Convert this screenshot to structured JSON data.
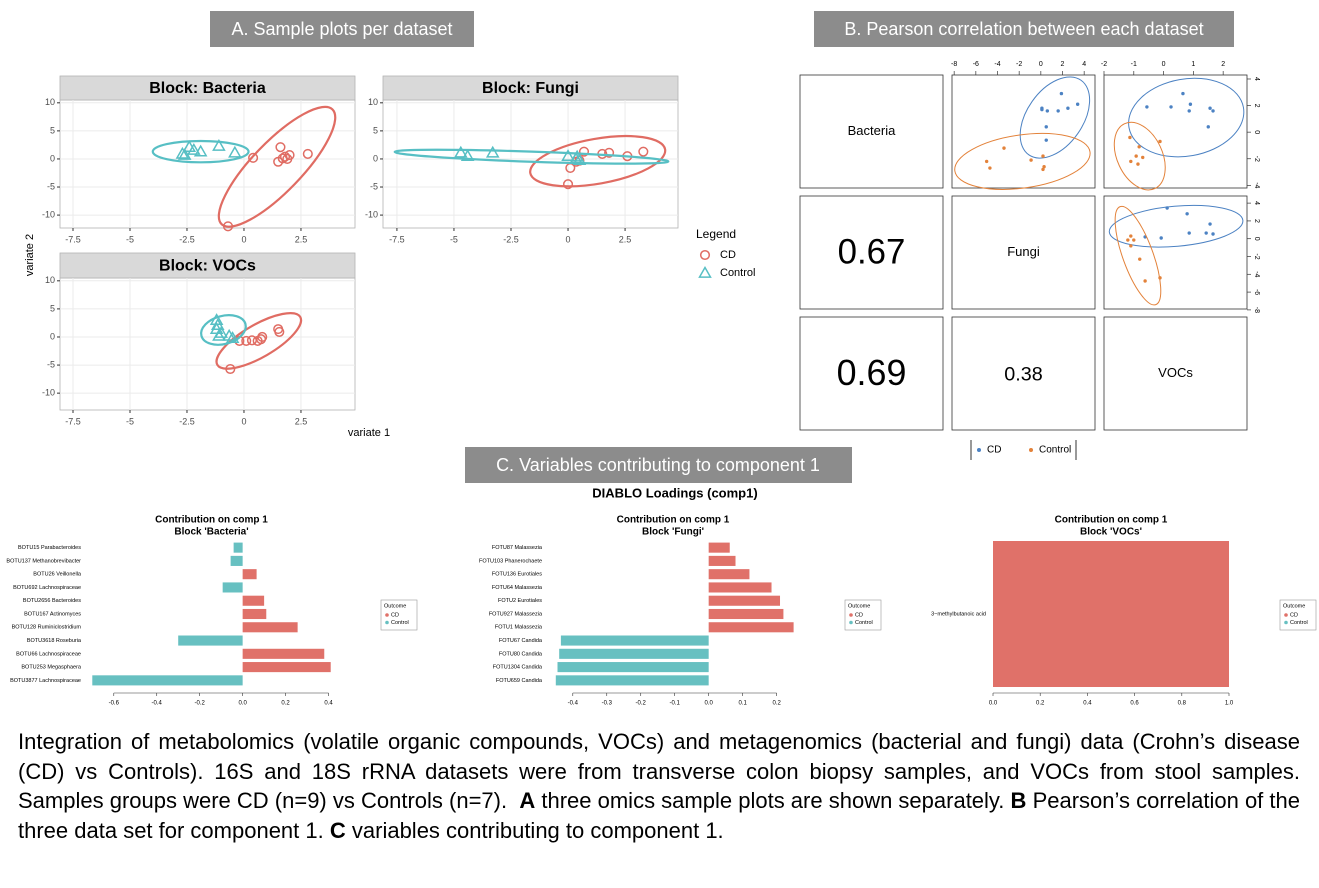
{
  "panels": {
    "a": "A. Sample plots per dataset",
    "b": "B. Pearson correlation between each dataset",
    "c": "C. Variables contributing to component 1"
  },
  "sample_plots": {
    "x_label": "variate 1",
    "y_label": "variate 2",
    "legend_title": "Legend"
  },
  "loadings_title": "DIABLO Loadings (comp1)",
  "chart_data": [
    {
      "type": "scatter",
      "title": "Block: Bacteria",
      "xlim": [
        -8.07,
        4.87
      ],
      "ylim": [
        -12.3,
        10.5
      ],
      "xticks": [
        -7.5,
        -5,
        -2.5,
        0,
        2.5
      ],
      "yticks": [
        -10,
        -5,
        0,
        5,
        10
      ],
      "grid": true,
      "series": [
        {
          "name": "CD",
          "color": "#e06c63",
          "marker": "circle",
          "x": [
            1.6,
            1.5,
            1.8,
            2.0,
            1.9,
            2.8,
            0.4,
            -0.7,
            1.7
          ],
          "y": [
            2.1,
            -0.5,
            0.4,
            0.7,
            0.0,
            0.9,
            0.2,
            -12.0,
            0.1
          ],
          "ellipse": {
            "cx": 1.45,
            "cy": -1.4,
            "rx": 3.5,
            "ry": 4.4,
            "angle": -46
          }
        },
        {
          "name": "Control",
          "color": "#57bfc4",
          "marker": "triangle",
          "x": [
            -2.4,
            -2.6,
            -2.2,
            -1.9,
            -1.1,
            -0.4,
            -2.7
          ],
          "y": [
            2.1,
            0.7,
            1.6,
            1.3,
            2.3,
            1.1,
            0.9
          ],
          "ellipse": {
            "cx": -1.9,
            "cy": 1.3,
            "rx": 2.1,
            "ry": 1.9,
            "angle": 0
          }
        }
      ]
    },
    {
      "type": "scatter",
      "title": "Block: Fungi",
      "xlim": [
        -8.11,
        4.82
      ],
      "ylim": [
        -12.3,
        10.5
      ],
      "xticks": [
        -7.5,
        -5,
        -2.5,
        0,
        2.5
      ],
      "yticks": [
        -10,
        -5,
        0,
        5,
        10
      ],
      "grid": true,
      "series": [
        {
          "color": "#e06c63",
          "marker": "circle",
          "x": [
            0.7,
            1.5,
            1.8,
            2.6,
            3.3,
            0.0,
            0.1,
            0.35,
            0.5
          ],
          "y": [
            1.3,
            0.9,
            1.1,
            0.5,
            1.3,
            -4.5,
            -1.6,
            -0.5,
            -0.3
          ],
          "ellipse": {
            "cx": 1.3,
            "cy": -0.4,
            "rx": 3.0,
            "ry": 4.0,
            "angle": -10
          }
        },
        {
          "color": "#57bfc4",
          "marker": "triangle",
          "x": [
            -4.7,
            -4.4,
            -3.3,
            0.0,
            0.4,
            0.5,
            0.35
          ],
          "y": [
            1.1,
            0.5,
            1.1,
            0.5,
            0.4,
            -0.2,
            0.0
          ],
          "ellipse": {
            "cx": -1.6,
            "cy": 0.4,
            "rx": 6.0,
            "ry": 0.9,
            "angle": 2
          }
        }
      ]
    },
    {
      "type": "scatter",
      "title": "Block: VOCs",
      "xlim": [
        -8.07,
        4.87
      ],
      "ylim": [
        -13.0,
        10.5
      ],
      "xticks": [
        -7.5,
        -5,
        -2.5,
        0,
        2.5
      ],
      "yticks": [
        -10,
        -5,
        0,
        5,
        10
      ],
      "grid": true,
      "series": [
        {
          "color": "#e06c63",
          "marker": "circle",
          "x": [
            -0.6,
            -0.2,
            0.1,
            0.6,
            0.8,
            1.5,
            1.55,
            0.75,
            0.35
          ],
          "y": [
            -5.7,
            -0.7,
            -0.7,
            -0.7,
            0.0,
            1.4,
            0.9,
            -0.4,
            -0.6
          ],
          "ellipse": {
            "cx": 0.65,
            "cy": -0.7,
            "rx": 2.1,
            "ry": 2.9,
            "angle": -30
          }
        },
        {
          "color": "#57bfc4",
          "marker": "triangle",
          "x": [
            -1.2,
            -1.15,
            -1.2,
            -1.0,
            -1.1,
            -0.65,
            -0.5
          ],
          "y": [
            3.0,
            2.1,
            1.4,
            0.7,
            0.2,
            0.2,
            -0.2
          ],
          "ellipse": {
            "cx": -0.9,
            "cy": 1.25,
            "rx": 1.0,
            "ry": 2.5,
            "angle": -15
          }
        }
      ]
    },
    {
      "type": "pairs",
      "labels": [
        "Bacteria",
        "Fungi",
        "VOCs"
      ],
      "correlations": [
        0.67,
        0.69,
        0.38
      ],
      "xlims": [
        [
          -8.2,
          5.0
        ],
        [
          -2.0,
          2.8
        ]
      ],
      "ylims": [
        [
          -4.2,
          4.3
        ],
        [
          -7.9,
          4.8
        ]
      ],
      "xticks": [
        [
          -8,
          -6,
          -4,
          -2,
          0,
          2,
          4
        ],
        [
          -2,
          -1,
          0,
          1,
          2
        ]
      ],
      "yticks": [
        [
          -4,
          -2,
          0,
          2,
          4
        ],
        [
          -8,
          -6,
          -4,
          -2,
          0,
          2,
          4
        ]
      ],
      "series": [
        {
          "name": "CD",
          "color": "#4c82c3"
        },
        {
          "name": "Control",
          "color": "#e3823a"
        }
      ],
      "panels": [
        {
          "series": [
            {
              "x": [
                1.9,
                0.1,
                0.6,
                1.6,
                2.5,
                3.4,
                0.5,
                0.5,
                0.1
              ],
              "y": [
                2.9,
                1.8,
                1.6,
                1.6,
                1.8,
                2.1,
                0.4,
                -0.6,
                1.7
              ],
              "ellipse": {
                "cx": 1.3,
                "cy": 1.1,
                "rx": 4.2,
                "ry": 2.1,
                "angle": -55
              }
            },
            {
              "x": [
                -3.4,
                -5.0,
                -4.7,
                -0.9,
                0.2,
                0.3,
                0.2
              ],
              "y": [
                -1.2,
                -2.2,
                -2.7,
                -2.1,
                -1.8,
                -2.6,
                -2.8
              ],
              "ellipse": {
                "cx": -1.7,
                "cy": -2.2,
                "rx": 6.3,
                "ry": 2.0,
                "angle": -8
              }
            }
          ]
        },
        {
          "series": [
            {
              "x": [
                -0.56,
                0.25,
                0.65,
                0.86,
                1.56,
                1.66,
                1.5,
                0.9
              ],
              "y": [
                1.9,
                1.9,
                2.9,
                1.6,
                1.8,
                1.6,
                0.4,
                2.1
              ],
              "ellipse": {
                "cx": 0.76,
                "cy": 1.1,
                "rx": 1.95,
                "ry": 2.9,
                "angle": -10
              }
            },
            {
              "x": [
                -1.13,
                -0.82,
                -0.92,
                -1.1,
                -0.7,
                -0.12,
                -0.86
              ],
              "y": [
                -0.4,
                -1.1,
                -1.8,
                -2.2,
                -1.9,
                -0.7,
                -2.4
              ],
              "ellipse": {
                "cx": -0.8,
                "cy": -1.8,
                "rx": 1.2,
                "ry": 1.7,
                "angle": 65
              }
            }
          ]
        },
        {
          "series": [
            {
              "x": [
                0.12,
                0.79,
                1.56,
                1.43,
                0.86,
                -0.08,
                -0.62,
                1.66
              ],
              "y": [
                3.45,
                2.8,
                1.65,
                0.64,
                0.64,
                0.08,
                0.2,
                0.53
              ],
              "ellipse": {
                "cx": 0.42,
                "cy": 1.4,
                "rx": 2.25,
                "ry": 2.25,
                "angle": -5
              }
            },
            {
              "x": [
                -1.1,
                -1.0,
                -1.1,
                -0.8,
                -0.12,
                -0.62,
                -1.2
              ],
              "y": [
                0.3,
                -0.15,
                -0.8,
                -2.3,
                -4.4,
                -4.75,
                -0.15
              ],
              "ellipse": {
                "cx": -0.86,
                "cy": -1.9,
                "rx": 1.75,
                "ry": 1.7,
                "angle": 70
              }
            }
          ]
        }
      ]
    },
    {
      "type": "hbar",
      "title": "Contribution on comp 1",
      "subtitle": "Block 'Bacteria'",
      "legend_title": "Outcome",
      "categories": [
        "BOTU15 Parabacteroides",
        "BOTU137 Methanobrevibacter",
        "BOTU26 Veillonella",
        "BOTU692 Lachnospiraceae",
        "BOTU2656 Bacteroides",
        "BOTU167 Actinomyces",
        "BOTU128 Ruminiclostridium",
        "BOTU3618 Roseburia",
        "BOTU66 Lachnospiraceae",
        "BOTU253 Megasphaera",
        "BOTU3877 Lachnospiraceae"
      ],
      "series": [
        {
          "name": "CD",
          "color": "#e07169",
          "values": [
            null,
            null,
            0.065,
            null,
            0.1,
            0.11,
            0.256,
            null,
            0.38,
            0.41,
            null
          ]
        },
        {
          "name": "Control",
          "color": "#67c0c1",
          "values": [
            -0.042,
            -0.056,
            null,
            -0.093,
            null,
            null,
            null,
            -0.3,
            null,
            null,
            -0.7
          ]
        }
      ],
      "xlim": [
        -0.72,
        0.43
      ],
      "xticks": [
        -0.6,
        -0.4,
        -0.2,
        {
          "value": 0,
          "label": "0.0"
        },
        0.2,
        0.4
      ]
    },
    {
      "type": "hbar",
      "title": "Contribution on comp 1",
      "subtitle": "Block 'Fungi'",
      "legend_title": "Outcome",
      "categories": [
        "FOTU87 Malassezia",
        "FOTU103 Phanerochaete",
        "FOTU136 Eurotiales",
        "FOTU64 Malassezia",
        "FOTU2 Eurotiales",
        "FOTU927 Malassezia",
        "FOTU1 Malassezia",
        "FOTU67 Candida",
        "FOTU80 Candida",
        "FOTU1304 Candida",
        "FOTU659 Candida"
      ],
      "series": [
        {
          "name": "CD",
          "color": "#e07169",
          "values": [
            0.062,
            0.079,
            0.12,
            0.185,
            0.21,
            0.22,
            0.25,
            null,
            null,
            null,
            null
          ]
        },
        {
          "name": "Control",
          "color": "#67c0c1",
          "values": [
            null,
            null,
            null,
            null,
            null,
            null,
            null,
            -0.435,
            -0.44,
            -0.445,
            -0.45
          ]
        }
      ],
      "xlim": [
        -0.47,
        0.26
      ],
      "xticks": [
        -0.4,
        -0.3,
        -0.2,
        -0.1,
        {
          "value": 0,
          "label": "0.0"
        },
        0.1,
        0.2
      ]
    },
    {
      "type": "hbar",
      "title": "Contribution on comp 1",
      "subtitle": "Block 'VOCs'",
      "legend_title": "Outcome",
      "categories": [
        "3−methylbutanoic acid"
      ],
      "series": [
        {
          "name": "CD",
          "color": "#e07169",
          "values": [
            1
          ]
        },
        {
          "name": "Control",
          "color": "#67c0c1",
          "values": [
            null
          ]
        }
      ],
      "xlim": [
        0,
        1
      ],
      "xticks": [
        {
          "value": 0,
          "label": "0.0"
        },
        0.2,
        0.4,
        0.6,
        0.8,
        {
          "value": 1,
          "label": "1.0"
        }
      ]
    }
  ],
  "caption": [
    "Integration of metabolomics (volatile organic compounds, VOCs) and metagenomics (bacterial and fungi) data (Crohn’s disease (CD) vs Controls). 16S and 18S rRNA datasets were from transverse colon biopsy samples, and VOCs from stool samples. Samples groups were CD (n=9) vs Controls (n=7).",
    "A",
    "three omics sample plots are shown separately.",
    "B",
    "Pearson’s correlation of the three data set for component 1.",
    "C",
    "variables contributing to component 1."
  ]
}
